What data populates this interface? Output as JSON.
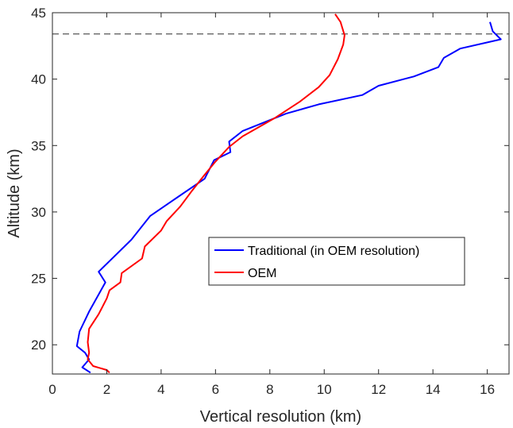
{
  "chart_data": {
    "type": "line",
    "title": "",
    "xlabel": "Vertical resolution (km)",
    "ylabel": "Altitude (km)",
    "xlim": [
      0,
      16.8
    ],
    "ylim": [
      17.8,
      45
    ],
    "x_ticks": [
      0,
      2,
      4,
      6,
      8,
      10,
      12,
      14,
      16
    ],
    "y_ticks": [
      20,
      25,
      30,
      35,
      40,
      45
    ],
    "grid": false,
    "legend_position": "center-right",
    "reference_line": {
      "style": "dashed",
      "color": "#555555",
      "altitude": 43.4
    },
    "series": [
      {
        "name": "Traditional (in OEM resolution)",
        "color": "#0000ff",
        "points": [
          [
            1.4,
            17.9
          ],
          [
            1.1,
            18.3
          ],
          [
            1.35,
            18.9
          ],
          [
            1.2,
            19.4
          ],
          [
            0.9,
            19.9
          ],
          [
            1.0,
            21.0
          ],
          [
            1.35,
            22.5
          ],
          [
            1.95,
            24.7
          ],
          [
            1.7,
            25.5
          ],
          [
            2.1,
            26.3
          ],
          [
            2.9,
            27.9
          ],
          [
            3.6,
            29.7
          ],
          [
            4.6,
            31.1
          ],
          [
            5.6,
            32.5
          ],
          [
            5.95,
            33.9
          ],
          [
            6.55,
            34.5
          ],
          [
            6.5,
            35.3
          ],
          [
            7.0,
            36.1
          ],
          [
            8.6,
            37.4
          ],
          [
            9.8,
            38.1
          ],
          [
            11.4,
            38.8
          ],
          [
            12.0,
            39.5
          ],
          [
            13.3,
            40.2
          ],
          [
            14.2,
            40.9
          ],
          [
            14.4,
            41.6
          ],
          [
            15.0,
            42.3
          ],
          [
            16.5,
            43.0
          ],
          [
            16.2,
            43.6
          ],
          [
            16.1,
            44.3
          ]
        ]
      },
      {
        "name": "OEM",
        "color": "#ff0000",
        "points": [
          [
            2.1,
            17.9
          ],
          [
            2.0,
            18.1
          ],
          [
            1.5,
            18.4
          ],
          [
            1.3,
            18.9
          ],
          [
            1.35,
            19.4
          ],
          [
            1.3,
            20.2
          ],
          [
            1.35,
            21.2
          ],
          [
            1.7,
            22.3
          ],
          [
            2.0,
            23.5
          ],
          [
            2.1,
            24.1
          ],
          [
            2.5,
            24.7
          ],
          [
            2.55,
            25.4
          ],
          [
            3.3,
            26.5
          ],
          [
            3.4,
            27.4
          ],
          [
            4.0,
            28.6
          ],
          [
            4.2,
            29.3
          ],
          [
            4.7,
            30.4
          ],
          [
            5.1,
            31.5
          ],
          [
            5.6,
            32.8
          ],
          [
            6.0,
            33.8
          ],
          [
            6.5,
            34.9
          ],
          [
            7.0,
            35.7
          ],
          [
            8.2,
            37.1
          ],
          [
            9.1,
            38.3
          ],
          [
            9.8,
            39.4
          ],
          [
            10.2,
            40.3
          ],
          [
            10.5,
            41.5
          ],
          [
            10.7,
            42.6
          ],
          [
            10.75,
            43.3
          ],
          [
            10.6,
            44.3
          ],
          [
            10.4,
            44.9
          ]
        ]
      }
    ]
  }
}
